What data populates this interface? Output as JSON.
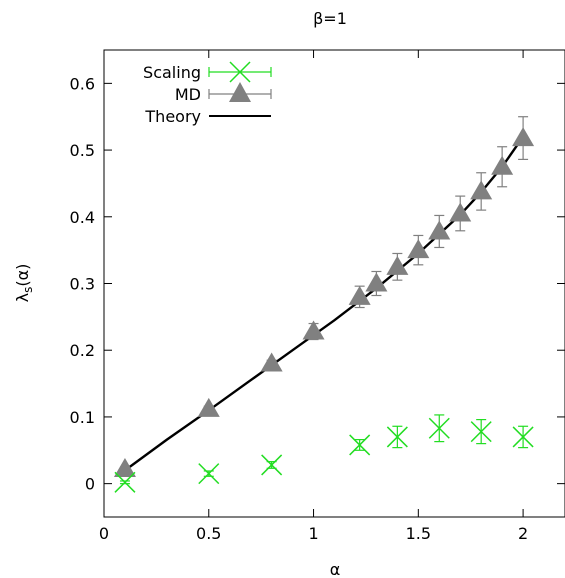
{
  "chart_data": {
    "type": "scatter",
    "title": "β=1",
    "xlabel": "α",
    "ylabel_main": "λ",
    "ylabel_sub": "s",
    "ylabel_tail": "(α)",
    "xlim": [
      0,
      2.2
    ],
    "ylim": [
      -0.05,
      0.65
    ],
    "xticks": [
      0,
      0.5,
      1,
      1.5,
      2
    ],
    "xtick_labels": [
      "0",
      "0.5",
      "1",
      "1.5",
      "2"
    ],
    "yticks": [
      0,
      0.1,
      0.2,
      0.3,
      0.4,
      0.5,
      0.6
    ],
    "ytick_labels": [
      "0",
      "0.1",
      "0.2",
      "0.3",
      "0.4",
      "0.5",
      "0.6"
    ],
    "grid": false,
    "legend_position": "top-left",
    "series": [
      {
        "name": "Scaling",
        "kind": "points",
        "marker": "cross",
        "color": "#22dd22",
        "x": [
          0.1,
          0.5,
          0.8,
          1.22,
          1.4,
          1.6,
          1.8,
          2.0
        ],
        "y": [
          0.002,
          0.015,
          0.028,
          0.058,
          0.07,
          0.083,
          0.078,
          0.07
        ],
        "err": [
          0.002,
          0.004,
          0.005,
          0.008,
          0.016,
          0.02,
          0.018,
          0.016
        ]
      },
      {
        "name": "MD",
        "kind": "points",
        "marker": "triangle",
        "color": "#808080",
        "x": [
          0.1,
          0.5,
          0.8,
          1.0,
          1.22,
          1.3,
          1.4,
          1.5,
          1.6,
          1.7,
          1.8,
          1.9,
          2.0
        ],
        "y": [
          0.022,
          0.112,
          0.18,
          0.228,
          0.28,
          0.3,
          0.325,
          0.35,
          0.378,
          0.405,
          0.438,
          0.475,
          0.518
        ],
        "err": [
          0.003,
          0.004,
          0.005,
          0.012,
          0.016,
          0.018,
          0.02,
          0.022,
          0.024,
          0.026,
          0.028,
          0.03,
          0.032
        ]
      },
      {
        "name": "Theory",
        "kind": "line",
        "color": "#000000",
        "x": [
          0.1,
          0.3,
          0.5,
          0.7,
          0.9,
          1.1,
          1.3,
          1.5,
          1.7,
          1.8,
          1.9,
          2.0
        ],
        "y": [
          0.02,
          0.066,
          0.11,
          0.155,
          0.2,
          0.245,
          0.293,
          0.345,
          0.403,
          0.437,
          0.475,
          0.52
        ]
      }
    ]
  }
}
